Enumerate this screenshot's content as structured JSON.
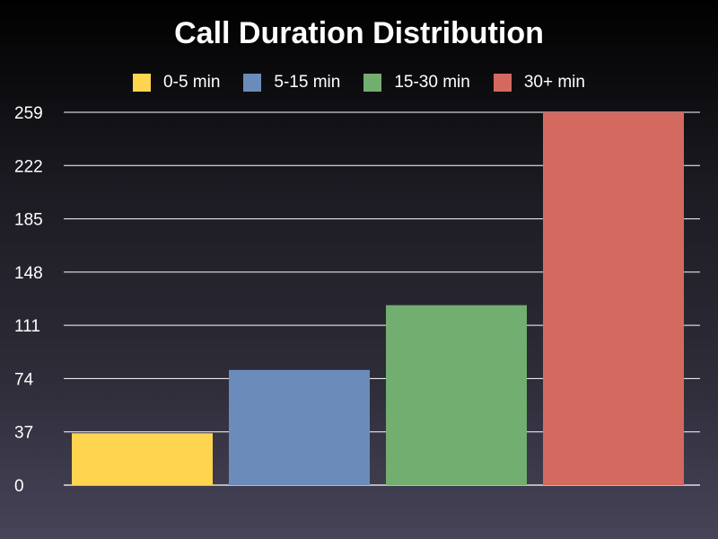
{
  "chart_data": {
    "type": "bar",
    "title": "Call Duration Distribution",
    "xlabel": "",
    "ylabel": "",
    "categories": [
      "0-5 min",
      "5-15 min",
      "15-30 min",
      "30+ min"
    ],
    "values": [
      36,
      80,
      125,
      259
    ],
    "colors": [
      "#ffd54f",
      "#6b8cba",
      "#72ae6f",
      "#d4695f"
    ],
    "ylim": [
      0,
      259
    ],
    "yticks": [
      0,
      37,
      74,
      111,
      148,
      185,
      222,
      259
    ],
    "grid": true,
    "legend_position": "top-center",
    "legend": [
      "0-5 min",
      "5-15 min",
      "15-30 min",
      "30+ min"
    ]
  }
}
